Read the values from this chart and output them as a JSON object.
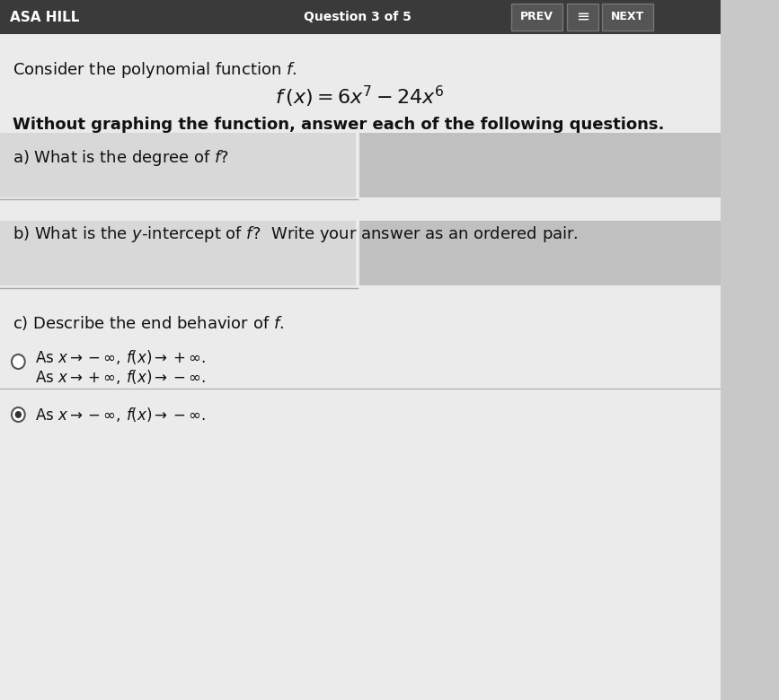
{
  "bg_color": "#c8c8c8",
  "header_bg": "#3a3a3a",
  "header_text_color": "#ffffff",
  "header_left": "ASA HILL",
  "header_center": "Question 3 of 5",
  "header_btn1": "PREV",
  "header_btn2": "≡",
  "header_btn3": "NEXT",
  "body_bg": "#ebebeb",
  "body_text_color": "#111111",
  "intro_line": "Consider the polynomial function $f$.",
  "formula_line": "$f\\,(x) = 6x^7 - 24x^6$",
  "instruction_line": "Without graphing the function, answer each of the following questions.",
  "part_a_label": "a) What is the degree of $f$?",
  "part_b_label": "b) What is the $y$-intercept of $f$?  Write your answer as an ordered pair.",
  "part_c_label": "c) Describe the end behavior of $f$.",
  "answer_box_color": "#c0c0c0",
  "left_box_color": "#d8d8d8",
  "option1_line1": "As $x \\to -\\infty,\\, f(x) \\to +\\infty.$",
  "option1_line2": "As $x \\to +\\infty,\\, f(x) \\to -\\infty.$",
  "option2_line1": "As $x \\to -\\infty,\\, f(x) \\to -\\infty.$",
  "separator_color": "#aaaaaa",
  "radio_circle_color": "#555555",
  "radio_partial_color": "#333333",
  "btn_color": "#555555",
  "btn_edge_color": "#777777"
}
